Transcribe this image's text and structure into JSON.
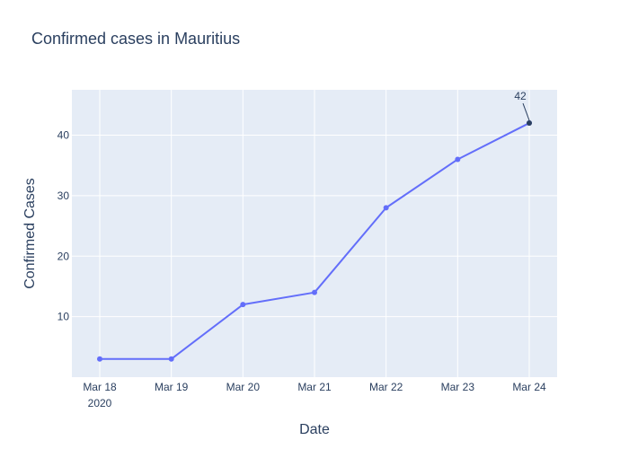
{
  "chart_data": {
    "type": "line",
    "title": "Confirmed cases in Mauritius",
    "xlabel": "Date",
    "ylabel": "Confirmed Cases",
    "x": [
      "2020-03-18",
      "2020-03-19",
      "2020-03-20",
      "2020-03-21",
      "2020-03-22",
      "2020-03-23",
      "2020-03-24"
    ],
    "x_tick_labels": [
      "Mar 18",
      "Mar 19",
      "Mar 20",
      "Mar 21",
      "Mar 22",
      "Mar 23",
      "Mar 24"
    ],
    "x_tick_sublabel": "2020",
    "y_ticks": [
      10,
      20,
      30,
      40
    ],
    "ylim": [
      0,
      47.5
    ],
    "series": [
      {
        "values": [
          3,
          3,
          12,
          14,
          28,
          36,
          42
        ],
        "color": "#636efa"
      }
    ],
    "annotation": {
      "x": "2020-03-24",
      "y": 42,
      "text": "42"
    },
    "grid": true,
    "colors": {
      "plot_background": "#e5ecf6",
      "grid": "#ffffff",
      "text": "#2a3f5f",
      "annotation_marker": "#2a3f5f"
    }
  }
}
